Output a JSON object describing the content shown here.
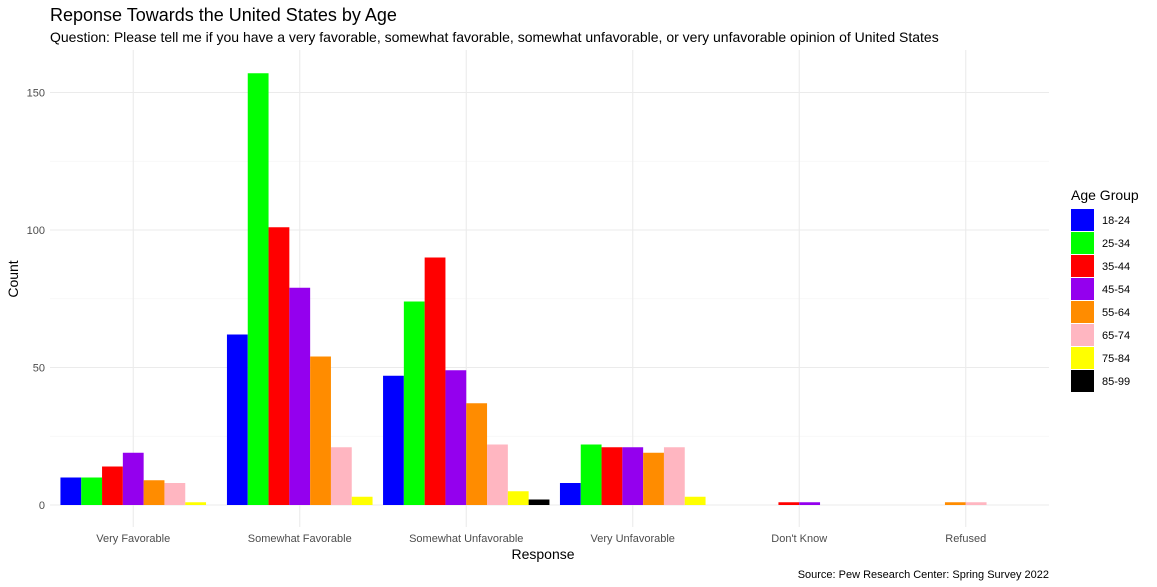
{
  "chart_data": {
    "type": "bar",
    "title": "Reponse Towards the United States by Age",
    "subtitle": "Question: Please tell me if you have a very favorable, somewhat favorable, somewhat unfavorable, or very unfavorable opinion of United States",
    "xlabel": "Response",
    "ylabel": "Count",
    "caption": "Source: Pew Research Center: Spring Survey 2022",
    "legend_title": "Age Group",
    "legend_position": "right",
    "grid": true,
    "ylim": [
      0,
      165
    ],
    "yticks": [
      0,
      50,
      100,
      150
    ],
    "categories": [
      "Very Favorable",
      "Somewhat Favorable",
      "Somewhat Unfavorable",
      "Very Unfavorable",
      "Don't Know",
      "Refused"
    ],
    "series": [
      {
        "name": "18-24",
        "color": "#0000ff",
        "values": [
          10,
          62,
          47,
          8,
          0,
          0
        ]
      },
      {
        "name": "25-34",
        "color": "#00ff00",
        "values": [
          10,
          157,
          74,
          22,
          0,
          0
        ]
      },
      {
        "name": "35-44",
        "color": "#ff0000",
        "values": [
          14,
          101,
          90,
          21,
          1,
          0
        ]
      },
      {
        "name": "45-54",
        "color": "#9400ee",
        "values": [
          19,
          79,
          49,
          21,
          1,
          0
        ]
      },
      {
        "name": "55-64",
        "color": "#ff8c00",
        "values": [
          9,
          54,
          37,
          19,
          0,
          1
        ]
      },
      {
        "name": "65-74",
        "color": "#ffb6c1",
        "values": [
          8,
          21,
          22,
          21,
          0,
          1
        ]
      },
      {
        "name": "75-84",
        "color": "#ffff00",
        "values": [
          1,
          3,
          5,
          3,
          0,
          0
        ]
      },
      {
        "name": "85-99",
        "color": "#000000",
        "values": [
          0,
          0,
          2,
          0,
          0,
          0
        ]
      }
    ],
    "bar_groups": [
      [
        0,
        1,
        2,
        3,
        4,
        5,
        6
      ],
      [
        0,
        1,
        2,
        3,
        4,
        5,
        6
      ],
      [
        0,
        1,
        2,
        3,
        4,
        5,
        6,
        7
      ],
      [
        0,
        1,
        2,
        3,
        4,
        5,
        6
      ],
      [
        2,
        3
      ],
      [
        4,
        5
      ]
    ]
  }
}
